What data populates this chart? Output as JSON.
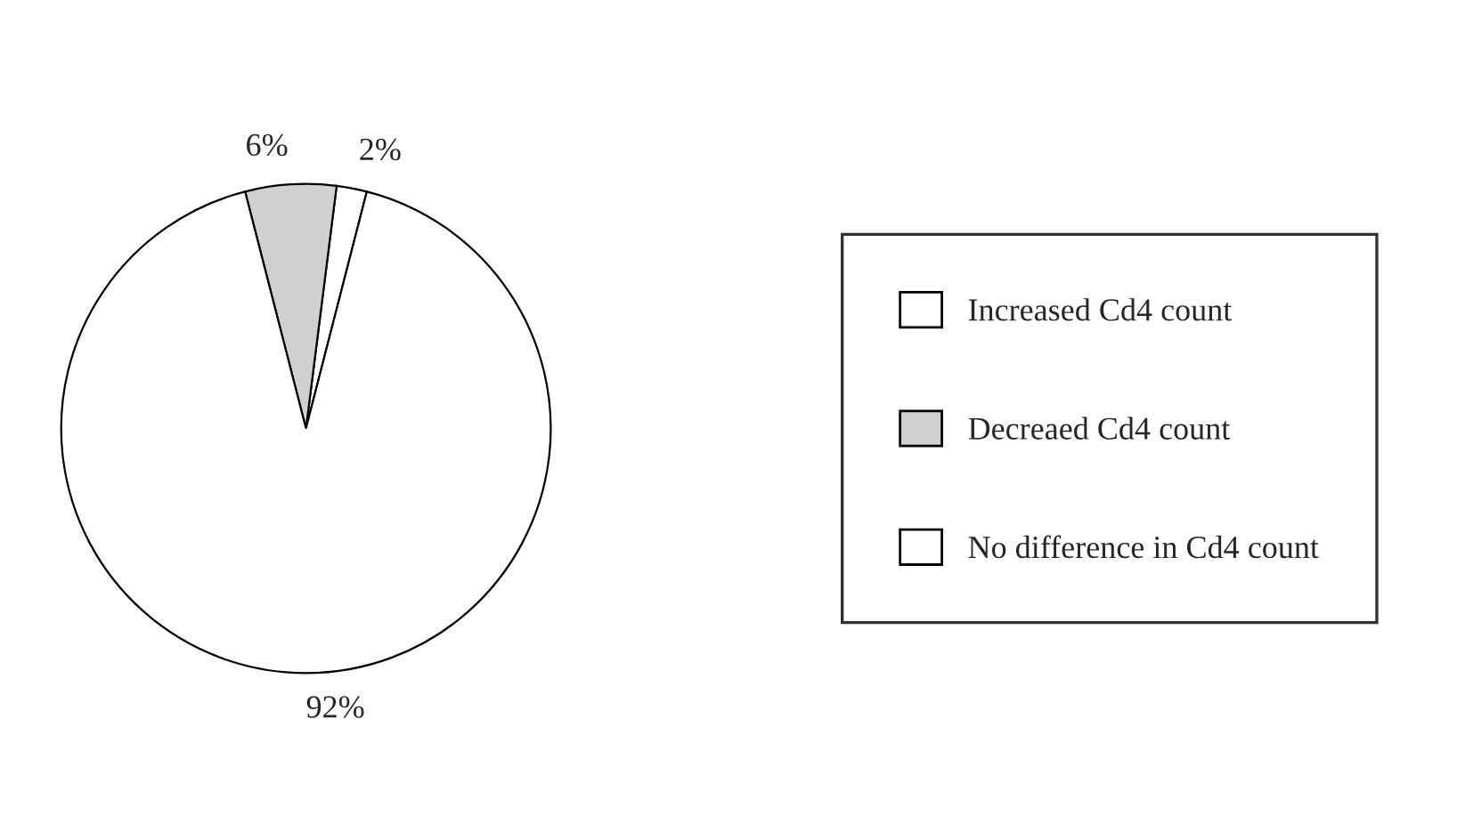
{
  "chart_data": {
    "type": "pie",
    "categories": [
      "Increased Cd4 count",
      "Decreaed Cd4 count",
      "No difference in Cd4 count"
    ],
    "values": [
      2,
      6,
      92
    ],
    "colors": [
      "#ffffff",
      "#d0d0d0",
      "#ffffff"
    ],
    "value_labels": [
      "2%",
      "6%",
      "92%"
    ],
    "legend": "right"
  }
}
